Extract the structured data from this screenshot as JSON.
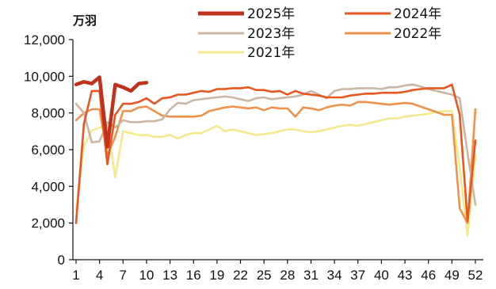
{
  "chart_data": {
    "type": "line",
    "unit_label": "万羽",
    "ylim": [
      0,
      12000
    ],
    "y_ticks": [
      "0",
      "2,000",
      "4,000",
      "6,000",
      "8,000",
      "10,000",
      "12,000"
    ],
    "x_range": [
      1,
      52
    ],
    "x_ticks": [
      "1",
      "4",
      "7",
      "10",
      "13",
      "16",
      "19",
      "22",
      "25",
      "28",
      "31",
      "34",
      "37",
      "40",
      "43",
      "46",
      "49",
      "52"
    ],
    "grid": false,
    "legend": "top",
    "series": [
      {
        "name": "2025年",
        "color": "#c0311b",
        "width": 4.5,
        "values": [
          9550,
          9700,
          9600,
          9950,
          6150,
          9550,
          9400,
          9200,
          9600,
          9650
        ]
      },
      {
        "name": "2024年",
        "color": "#e8551e",
        "width": 2.6,
        "values": [
          2000,
          7400,
          9200,
          9200,
          5200,
          7900,
          8500,
          8500,
          8600,
          8800,
          8500,
          8800,
          8850,
          9000,
          9000,
          9100,
          9200,
          9150,
          9300,
          9300,
          9350,
          9350,
          9400,
          9250,
          9250,
          9150,
          9200,
          9000,
          9200,
          9050,
          9000,
          8950,
          8850,
          8850,
          8850,
          8950,
          9000,
          9050,
          9050,
          9100,
          9100,
          9100,
          9150,
          9250,
          9300,
          9350,
          9350,
          9350,
          9550,
          7900,
          2100,
          6500
        ]
      },
      {
        "name": "2023年",
        "color": "#cbb6a3",
        "width": 2.6,
        "values": [
          8500,
          8000,
          6400,
          6450,
          7500,
          7200,
          7600,
          7500,
          7500,
          7550,
          7550,
          7650,
          8200,
          8550,
          8500,
          8700,
          8750,
          8800,
          8850,
          8900,
          8850,
          8750,
          8650,
          8800,
          8850,
          8750,
          8800,
          8850,
          8900,
          9000,
          9200,
          9000,
          8800,
          9200,
          9300,
          9300,
          9350,
          9350,
          9350,
          9300,
          9400,
          9400,
          9500,
          9550,
          9450,
          9300,
          9200,
          9100,
          9000,
          8800,
          5800,
          3000
        ]
      },
      {
        "name": "2022年",
        "color": "#ee924b",
        "width": 2.6,
        "values": [
          7600,
          8000,
          8200,
          8200,
          5700,
          6700,
          8100,
          8100,
          8300,
          8350,
          8100,
          7850,
          7800,
          7800,
          7800,
          7800,
          7850,
          8100,
          8200,
          8300,
          8350,
          8300,
          8250,
          8300,
          8150,
          8300,
          8250,
          8250,
          7800,
          8300,
          8250,
          8150,
          8300,
          8400,
          8450,
          8400,
          8600,
          8600,
          8550,
          8500,
          8450,
          8500,
          8550,
          8500,
          8350,
          8200,
          8050,
          7900,
          7900,
          2800,
          2000,
          8200
        ]
      },
      {
        "name": "2021年",
        "color": "#f5e98d",
        "width": 2.6,
        "values": [
          2700,
          6200,
          7050,
          7200,
          7350,
          4500,
          7000,
          6900,
          6800,
          6800,
          6700,
          6700,
          6800,
          6600,
          6800,
          6900,
          6900,
          7100,
          7300,
          7000,
          7100,
          7000,
          6900,
          6800,
          6850,
          6900,
          7000,
          7100,
          7100,
          7000,
          6950,
          7000,
          7100,
          7200,
          7300,
          7350,
          7300,
          7400,
          7500,
          7600,
          7700,
          7700,
          7800,
          7850,
          7900,
          7950,
          8050,
          8100,
          8100,
          5000,
          1300,
          5700
        ]
      }
    ]
  }
}
